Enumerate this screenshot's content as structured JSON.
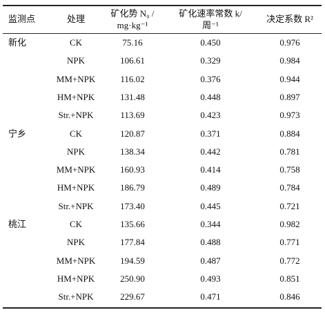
{
  "table": {
    "header": [
      "监测点",
      "处理",
      [
        "矿化势 N₀ /",
        "mg·kg⁻¹"
      ],
      [
        "矿化速率常数 k/",
        "周⁻¹"
      ],
      "决定系数 R²"
    ],
    "groups": [
      {
        "site": "新化",
        "rows": [
          [
            "CK",
            "75.16",
            "0.450",
            "0.976"
          ],
          [
            "NPK",
            "106.61",
            "0.329",
            "0.984"
          ],
          [
            "MM+NPK",
            "116.02",
            "0.376",
            "0.944"
          ],
          [
            "HM+NPK",
            "131.48",
            "0.448",
            "0.897"
          ],
          [
            "Str.+NPK",
            "113.69",
            "0.423",
            "0.973"
          ]
        ]
      },
      {
        "site": "宁乡",
        "rows": [
          [
            "CK",
            "120.87",
            "0.371",
            "0.884"
          ],
          [
            "NPK",
            "138.34",
            "0.442",
            "0.781"
          ],
          [
            "MM+NPK",
            "160.93",
            "0.414",
            "0.758"
          ],
          [
            "HM+NPK",
            "186.79",
            "0.489",
            "0.784"
          ],
          [
            "Str.+NPK",
            "173.40",
            "0.445",
            "0.721"
          ]
        ]
      },
      {
        "site": "桃江",
        "rows": [
          [
            "CK",
            "135.66",
            "0.344",
            "0.982"
          ],
          [
            "NPK",
            "177.84",
            "0.488",
            "0.771"
          ],
          [
            "MM+NPK",
            "194.59",
            "0.487",
            "0.772"
          ],
          [
            "HM+NPK",
            "250.90",
            "0.493",
            "0.851"
          ],
          [
            "Str.+NPK",
            "229.67",
            "0.471",
            "0.846"
          ]
        ]
      }
    ]
  }
}
